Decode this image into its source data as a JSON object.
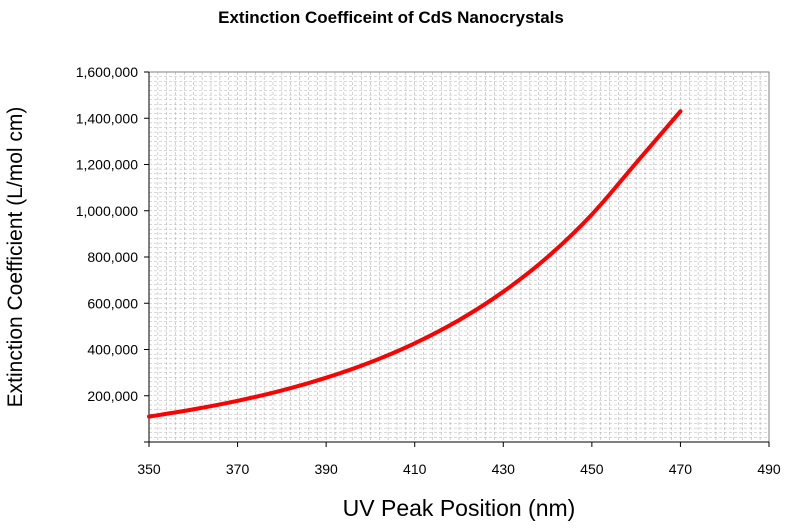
{
  "chart_data": {
    "type": "line",
    "title": "Extinction Coefficeint of CdS Nanocrystals",
    "xlabel": "UV Peak Position (nm)",
    "ylabel": "Extinction Coefficient (L/mol cm)",
    "xlim": [
      350,
      490
    ],
    "ylim": [
      0,
      1600000
    ],
    "x_ticks": [
      "350",
      "370",
      "390",
      "410",
      "430",
      "450",
      "470",
      "490"
    ],
    "y_ticks": [
      "200,000",
      "400,000",
      "600,000",
      "800,000",
      "1,000,000",
      "1,200,000",
      "1,400,000",
      "1,600,000"
    ],
    "grid": "dense dashed",
    "legend": "none",
    "line_color": "#ff0000",
    "series": [
      {
        "x": [
          350,
          360,
          370,
          380,
          390,
          400,
          410,
          420,
          430,
          440,
          450,
          460,
          470
        ],
        "y": [
          110000,
          141000,
          178000,
          223000,
          278000,
          345000,
          427000,
          527000,
          650000,
          800000,
          984000,
          1207000,
          1430000
        ]
      }
    ]
  }
}
